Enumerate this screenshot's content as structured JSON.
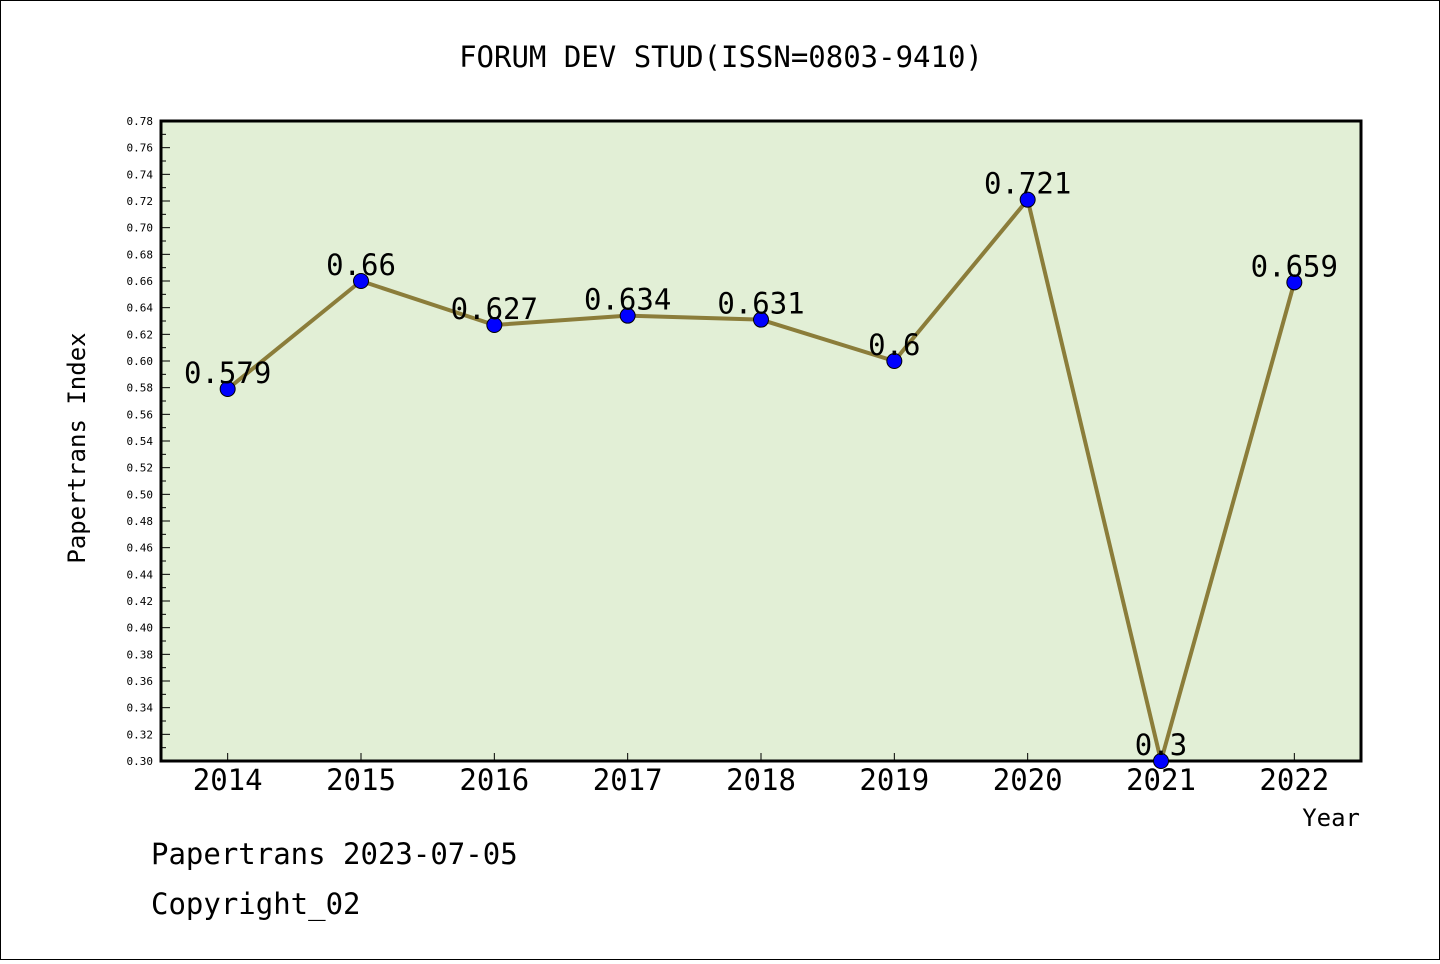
{
  "footer": {
    "line1": "Papertrans 2023-07-05",
    "line2": "Copyright_02"
  },
  "chart_data": {
    "type": "line",
    "title": "FORUM DEV STUD(ISSN=0803-9410)",
    "xlabel": "Year",
    "ylabel": "Papertrans Index",
    "categories": [
      "2014",
      "2015",
      "2016",
      "2017",
      "2018",
      "2019",
      "2020",
      "2021",
      "2022"
    ],
    "values": [
      0.579,
      0.66,
      0.627,
      0.634,
      0.631,
      0.6,
      0.721,
      0.3,
      0.659
    ],
    "data_labels": [
      "0.579",
      "0.66",
      "0.627",
      "0.634",
      "0.631",
      "0.6",
      "0.721",
      "0.3",
      "0.659"
    ],
    "ylim": [
      0.3,
      0.78
    ],
    "yticks": [
      "0.30",
      "0.32",
      "0.34",
      "0.36",
      "0.38",
      "0.40",
      "0.42",
      "0.44",
      "0.46",
      "0.48",
      "0.50",
      "0.52",
      "0.54",
      "0.56",
      "0.58",
      "0.60",
      "0.62",
      "0.64",
      "0.66",
      "0.68",
      "0.70",
      "0.72",
      "0.74",
      "0.76",
      "0.78"
    ],
    "grid": false,
    "colors": {
      "plot_background": "#e2efd6",
      "line": "#8b7d3a",
      "marker": "#0000ff"
    }
  }
}
